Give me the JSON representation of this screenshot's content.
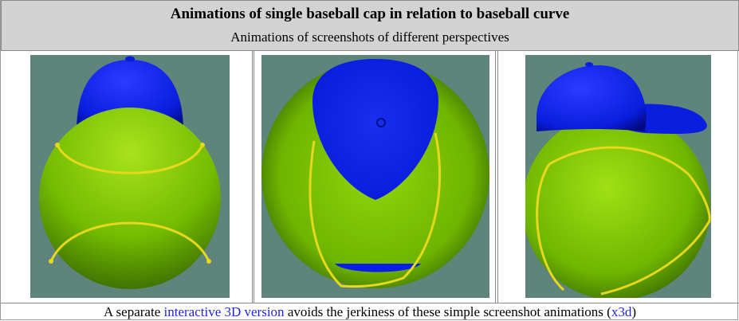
{
  "header": {
    "title": "Animations of single baseball cap in relation to baseball curve",
    "subtitle": "Animations of screenshots of different perspectives"
  },
  "screenshots": [
    {
      "view": "front",
      "colors": {
        "background": "#5e847c",
        "ball": "#79c400",
        "cap": "#0a1ee8",
        "seam": "#e6d81c"
      }
    },
    {
      "view": "top",
      "colors": {
        "background": "#5e847c",
        "ball": "#79c400",
        "cap": "#0a1ee8",
        "seam": "#e6d81c"
      }
    },
    {
      "view": "side",
      "colors": {
        "background": "#5e847c",
        "ball": "#79c400",
        "cap": "#0a1ee8",
        "seam": "#e6d81c"
      }
    }
  ],
  "footer": {
    "text_before": "A separate ",
    "link_interactive": "interactive 3D version",
    "text_middle": " avoids the jerkiness of these simple screenshot animations (",
    "link_x3d": "x3d",
    "text_after": ")"
  },
  "colors": {
    "header_bg": "#d3d3d3",
    "link": "#2222ee",
    "border": "#8a8a8a"
  }
}
